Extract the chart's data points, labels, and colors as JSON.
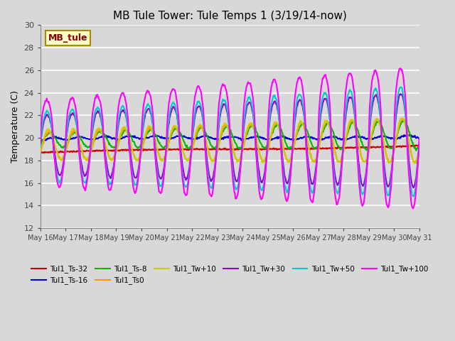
{
  "title": "MB Tule Tower: Tule Temps 1 (3/19/14-now)",
  "ylabel": "Temperature (C)",
  "ylim": [
    12,
    30
  ],
  "yticks": [
    12,
    14,
    16,
    18,
    20,
    22,
    24,
    26,
    28,
    30
  ],
  "xtick_labels": [
    "May 16",
    "May 17",
    "May 18",
    "May 19",
    "May 20",
    "May 21",
    "May 22",
    "May 23",
    "May 24",
    "May 25",
    "May 26",
    "May 27",
    "May 28",
    "May 29",
    "May 30",
    "May 31"
  ],
  "plot_bg_color": "#d8d8d8",
  "grid_color": "#ffffff",
  "series": [
    {
      "name": "Tul1_Ts-32",
      "color": "#cc0000",
      "lw": 1.5
    },
    {
      "name": "Tul1_Ts-16",
      "color": "#0000cc",
      "lw": 1.5
    },
    {
      "name": "Tul1_Ts-8",
      "color": "#00bb00",
      "lw": 1.5
    },
    {
      "name": "Tul1_Ts0",
      "color": "#ff9900",
      "lw": 1.5
    },
    {
      "name": "Tul1_Tw+10",
      "color": "#cccc00",
      "lw": 1.5
    },
    {
      "name": "Tul1_Tw+30",
      "color": "#9900cc",
      "lw": 1.5
    },
    {
      "name": "Tul1_Tw+50",
      "color": "#00cccc",
      "lw": 1.5
    },
    {
      "name": "Tul1_Tw+100",
      "color": "#ff00ff",
      "lw": 1.5
    }
  ],
  "legend_ncol": 6,
  "annotation": {
    "text": "MB_tule",
    "facecolor": "#ffffcc",
    "edgecolor": "#aa8800",
    "textcolor": "#880000"
  }
}
